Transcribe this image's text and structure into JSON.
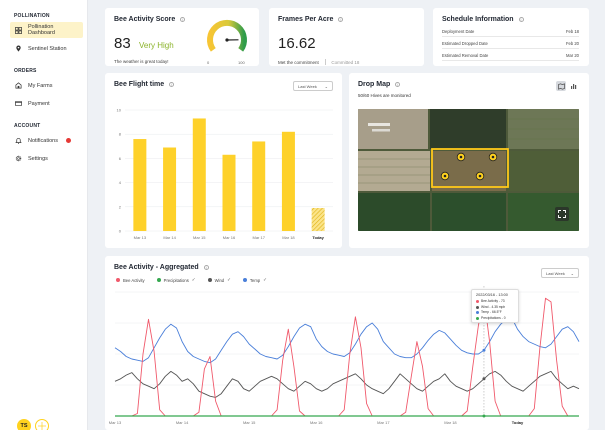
{
  "sidebar": {
    "sections": [
      {
        "title": "POLLINATION",
        "items": [
          {
            "label": "Pollination Dashboard",
            "icon": "grid-icon",
            "active": true
          },
          {
            "label": "Sentinel Station",
            "icon": "location-pin-icon"
          }
        ]
      },
      {
        "title": "ORDERS",
        "items": [
          {
            "label": "My Farms",
            "icon": "farm-icon"
          },
          {
            "label": "Payment",
            "icon": "payment-icon"
          }
        ]
      },
      {
        "title": "ACCOUNT",
        "items": [
          {
            "label": "Notifications",
            "icon": "bell-icon"
          },
          {
            "label": "Settings",
            "icon": "gear-icon"
          }
        ]
      }
    ],
    "avatar_initials": "TS"
  },
  "colors": {
    "accent": "#ffd21f",
    "bar": "#fed12a",
    "bee_activity": "#f0596b",
    "precipitation": "#35a84f",
    "wind": "#555555",
    "temp": "#4a7fd9",
    "score_green": "#8bb32a"
  },
  "bee_activity_score": {
    "title": "Bee Activity Score",
    "value": "83",
    "label": "Very High",
    "subtitle": "The weather is great today!",
    "gauge_min": "0",
    "gauge_max": "100",
    "gauge_value": 83
  },
  "frames_per_acre": {
    "title": "Frames Per Acre",
    "value": "16.62",
    "status": "Met the commitment",
    "committed": "Committed 18"
  },
  "schedule": {
    "title": "Schedule Information",
    "rows": [
      {
        "label": "Deployment Date",
        "value": "Feb 18"
      },
      {
        "label": "Estimated Dropped Date",
        "value": "Feb 20"
      },
      {
        "label": "Estimated Removal Date",
        "value": "Mar 20"
      }
    ]
  },
  "flight_time": {
    "title": "Bee Flight time",
    "dropdown": "Last Week"
  },
  "drop_map": {
    "title": "Drop Map",
    "subtitle": "50/60 Hives are monitored"
  },
  "aggregated": {
    "title": "Bee Activity - Aggregated",
    "dropdown": "Last Week",
    "legend": [
      {
        "name": "Bee Activity",
        "color": "#f0596b",
        "checked": false
      },
      {
        "name": "Precipitations",
        "color": "#35a84f",
        "checked": true
      },
      {
        "name": "Wind",
        "color": "#555555",
        "checked": true
      },
      {
        "name": "Temp",
        "color": "#4a7fd9",
        "checked": true
      }
    ],
    "tooltip": {
      "title": "2022/03/16 - 13:00",
      "rows": [
        {
          "text": "Bee Activity - 73",
          "color": "#f0596b"
        },
        {
          "text": "Wind - 4.35 mph",
          "color": "#555555"
        },
        {
          "text": "Temp - 66.5°F",
          "color": "#4a7fd9"
        },
        {
          "text": "Precipitations - 0",
          "color": "#35a84f"
        }
      ]
    }
  },
  "chart_data": [
    {
      "type": "bar",
      "title": "Bee Flight time",
      "categories": [
        "Mar 13",
        "Mar 14",
        "Mar 15",
        "Mar 16",
        "Mar 17",
        "Mar 18",
        "Today"
      ],
      "values": [
        7.6,
        6.9,
        9.3,
        6.3,
        7.4,
        8.2,
        1.9
      ],
      "ylim": [
        0,
        10
      ],
      "yticks": [
        "0",
        "2",
        "4",
        "6",
        "8",
        "10"
      ],
      "grid": true
    },
    {
      "type": "line",
      "title": "Bee Activity - Aggregated",
      "x_ticks": [
        "Mar 13",
        "Mar 14",
        "Mar 15",
        "Mar 16",
        "Mar 17",
        "Mar 18",
        "Today"
      ],
      "points_per_day": 12,
      "series": [
        {
          "name": "Temp",
          "color": "#4a7fd9",
          "values": [
            55,
            52,
            48,
            46,
            45,
            44,
            47,
            55,
            63,
            70,
            74,
            71,
            60,
            52,
            48,
            46,
            44,
            43,
            46,
            53,
            60,
            66,
            68,
            64,
            58,
            54,
            50,
            48,
            47,
            46,
            49,
            56,
            64,
            71,
            74,
            72,
            62,
            56,
            52,
            50,
            49,
            48,
            51,
            58,
            66,
            72,
            75,
            70,
            60,
            55,
            50,
            48,
            47,
            47,
            50,
            55,
            61,
            66,
            69,
            67,
            62,
            57,
            53,
            51,
            50,
            50,
            53,
            60,
            68,
            74,
            78,
            79,
            70,
            64,
            60,
            58,
            56,
            55,
            58,
            64,
            70,
            72,
            68,
            60
          ]
        },
        {
          "name": "Wind",
          "color": "#555555",
          "values": [
            28,
            30,
            33,
            35,
            30,
            26,
            24,
            22,
            26,
            32,
            36,
            33,
            28,
            30,
            26,
            20,
            18,
            16,
            15,
            18,
            24,
            30,
            28,
            22,
            20,
            24,
            28,
            30,
            32,
            30,
            26,
            22,
            20,
            24,
            28,
            26,
            22,
            20,
            22,
            26,
            28,
            30,
            32,
            34,
            30,
            25,
            22,
            20,
            18,
            22,
            28,
            34,
            30,
            26,
            22,
            20,
            24,
            28,
            30,
            34,
            28,
            24,
            22,
            20,
            22,
            26,
            30,
            34,
            36,
            33,
            28,
            24,
            22,
            20,
            24,
            28,
            32,
            34,
            36,
            30,
            26,
            22,
            24,
            22
          ]
        },
        {
          "name": "Bee Activity",
          "color": "#f0596b",
          "values": [
            0,
            0,
            0,
            0,
            2,
            50,
            78,
            52,
            5,
            0,
            0,
            0,
            0,
            0,
            0,
            3,
            38,
            48,
            12,
            0,
            0,
            0,
            0,
            0,
            0,
            0,
            0,
            0,
            0,
            5,
            45,
            70,
            40,
            4,
            0,
            0,
            0,
            0,
            0,
            0,
            0,
            5,
            50,
            80,
            55,
            10,
            0,
            0,
            0,
            0,
            0,
            0,
            3,
            32,
            60,
            40,
            6,
            0,
            0,
            0,
            0,
            0,
            0,
            4,
            40,
            73,
            95,
            60,
            12,
            0,
            0,
            0,
            0,
            0,
            0,
            6,
            55,
            95,
            92,
            45,
            8,
            0,
            0,
            0
          ]
        },
        {
          "name": "Precipitations",
          "color": "#35a84f",
          "values": [
            0,
            0,
            0,
            0,
            0,
            0,
            0,
            0,
            0,
            0,
            0,
            0,
            0,
            0,
            0,
            0,
            0,
            0,
            0,
            0,
            0,
            0,
            0,
            0,
            0,
            0,
            0,
            0,
            0,
            0,
            0,
            0,
            0,
            0,
            0,
            0,
            0,
            0,
            0,
            0,
            0,
            0,
            0,
            0,
            0,
            0,
            0,
            0,
            0,
            0,
            0,
            0,
            0,
            0,
            0,
            0,
            0,
            0,
            0,
            0,
            0,
            0,
            0,
            0,
            0,
            0,
            0,
            0,
            0,
            0,
            0,
            0,
            0,
            0,
            0,
            0,
            0,
            0,
            0,
            0,
            0,
            0,
            0,
            0
          ]
        }
      ],
      "ylim": [
        0,
        100
      ],
      "grid": true
    }
  ]
}
